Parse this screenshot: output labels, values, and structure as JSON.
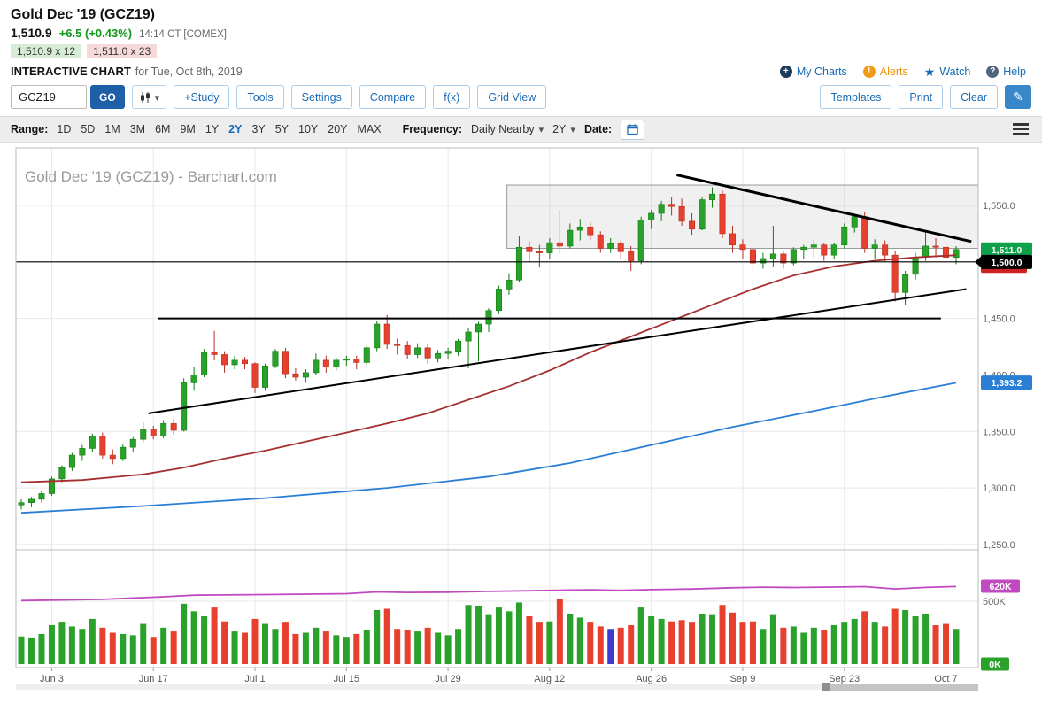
{
  "header": {
    "symbol_title": "Gold Dec '19 (GCZ19)",
    "price": "1,510.9",
    "change": "+6.5 (+0.43%)",
    "quote_time": "14:14 CT [COMEX]",
    "bid": "1,510.9 x 12",
    "ask": "1,511.0 x 23",
    "page_label": "INTERACTIVE CHART",
    "page_date": "for Tue, Oct 8th, 2019",
    "links": {
      "my_charts": "My Charts",
      "alerts": "Alerts",
      "watch": "Watch",
      "help": "Help"
    }
  },
  "toolbar": {
    "symbol_input": "GCZ19",
    "go": "GO",
    "buttons": [
      "+Study",
      "Tools",
      "Settings",
      "Compare",
      "f(x)",
      "Grid View"
    ],
    "right_buttons": [
      "Templates",
      "Print",
      "Clear"
    ]
  },
  "rangebar": {
    "range_label": "Range:",
    "ranges": [
      "1D",
      "5D",
      "1M",
      "3M",
      "6M",
      "9M",
      "1Y",
      "2Y",
      "3Y",
      "5Y",
      "10Y",
      "20Y",
      "MAX"
    ],
    "selected_range": "2Y",
    "frequency_label": "Frequency:",
    "frequency_value": "Daily Nearby",
    "frequency_range": "2Y",
    "date_label": "Date:"
  },
  "chart_data": {
    "type": "candlestick",
    "title": "Gold Dec '19 (GCZ19) - Barchart.com",
    "ylim": [
      1246,
      1602
    ],
    "price_gridlines": [
      1550,
      1500,
      1450,
      1400,
      1350,
      1300,
      1250
    ],
    "y_tick_labels": [
      "1,550.0",
      "1,500.0",
      "1,450.0",
      "1,400.0",
      "1,350.0",
      "1,300.0",
      "1,250.0"
    ],
    "x_ticks": [
      {
        "i": 3,
        "label": "Jun 3"
      },
      {
        "i": 13,
        "label": "Jun 17"
      },
      {
        "i": 23,
        "label": "Jul 1"
      },
      {
        "i": 32,
        "label": "Jul 15"
      },
      {
        "i": 42,
        "label": "Jul 29"
      },
      {
        "i": 52,
        "label": "Aug 12"
      },
      {
        "i": 62,
        "label": "Aug 26"
      },
      {
        "i": 71,
        "label": "Sep 9"
      },
      {
        "i": 81,
        "label": "Sep 23"
      },
      {
        "i": 91,
        "label": "Oct 7"
      }
    ],
    "colors": {
      "up": "#2aa12a",
      "down": "#e8402e",
      "up_stroke": "#0e7d0e",
      "down_stroke": "#b52f1f",
      "ma_fast": "#a63030",
      "ma_slow": "#2a7fd4",
      "oi": "#c04ac0",
      "grid": "#e8e8e8",
      "border": "#bbbbbb",
      "trend": "#000000"
    },
    "candles": [
      [
        "May 29",
        1285,
        1290,
        1281,
        1287,
        220
      ],
      [
        "May 30",
        1287,
        1292,
        1283,
        1290,
        205
      ],
      [
        "May 31",
        1290,
        1297,
        1287,
        1295,
        240
      ],
      [
        "Jun 3",
        1295,
        1310,
        1293,
        1308,
        310
      ],
      [
        "Jun 4",
        1308,
        1320,
        1305,
        1318,
        330
      ],
      [
        "Jun 5",
        1318,
        1331,
        1315,
        1329,
        300
      ],
      [
        "Jun 6",
        1329,
        1338,
        1324,
        1335,
        280
      ],
      [
        "Jun 7",
        1335,
        1348,
        1332,
        1346,
        360
      ],
      [
        "Jun 10",
        1346,
        1349,
        1326,
        1329,
        290
      ],
      [
        "Jun 11",
        1329,
        1334,
        1321,
        1326,
        250
      ],
      [
        "Jun 12",
        1326,
        1339,
        1324,
        1336,
        240
      ],
      [
        "Jun 13",
        1336,
        1345,
        1332,
        1343,
        230
      ],
      [
        "Jun 14",
        1343,
        1358,
        1340,
        1352,
        320
      ],
      [
        "Jun 17",
        1352,
        1355,
        1343,
        1346,
        210
      ],
      [
        "Jun 18",
        1346,
        1360,
        1344,
        1357,
        290
      ],
      [
        "Jun 19",
        1357,
        1361,
        1347,
        1351,
        260
      ],
      [
        "Jun 20",
        1351,
        1397,
        1350,
        1393,
        480
      ],
      [
        "Jun 21",
        1393,
        1407,
        1386,
        1400,
        420
      ],
      [
        "Jun 24",
        1400,
        1423,
        1398,
        1420,
        380
      ],
      [
        "Jun 25",
        1420,
        1439,
        1413,
        1418,
        450
      ],
      [
        "Jun 26",
        1418,
        1421,
        1402,
        1409,
        340
      ],
      [
        "Jun 27",
        1409,
        1417,
        1405,
        1413,
        260
      ],
      [
        "Jun 28",
        1413,
        1416,
        1405,
        1410,
        250
      ],
      [
        "Jul 1",
        1410,
        1411,
        1384,
        1389,
        360
      ],
      [
        "Jul 2",
        1389,
        1410,
        1386,
        1408,
        320
      ],
      [
        "Jul 3",
        1408,
        1423,
        1406,
        1421,
        280
      ],
      [
        "Jul 5",
        1421,
        1424,
        1397,
        1401,
        330
      ],
      [
        "Jul 8",
        1401,
        1406,
        1395,
        1398,
        240
      ],
      [
        "Jul 9",
        1398,
        1405,
        1393,
        1402,
        250
      ],
      [
        "Jul 10",
        1402,
        1419,
        1400,
        1413,
        290
      ],
      [
        "Jul 11",
        1413,
        1417,
        1402,
        1407,
        260
      ],
      [
        "Jul 12",
        1407,
        1415,
        1404,
        1413,
        230
      ],
      [
        "Jul 15",
        1413,
        1417,
        1408,
        1414,
        210
      ],
      [
        "Jul 16",
        1414,
        1417,
        1405,
        1411,
        240
      ],
      [
        "Jul 17",
        1411,
        1426,
        1409,
        1424,
        270
      ],
      [
        "Jul 18",
        1424,
        1448,
        1421,
        1445,
        430
      ],
      [
        "Jul 19",
        1445,
        1453,
        1423,
        1427,
        440
      ],
      [
        "Jul 22",
        1427,
        1432,
        1418,
        1426,
        280
      ],
      [
        "Jul 23",
        1426,
        1430,
        1414,
        1418,
        270
      ],
      [
        "Jul 24",
        1418,
        1428,
        1415,
        1424,
        260
      ],
      [
        "Jul 25",
        1424,
        1427,
        1410,
        1415,
        290
      ],
      [
        "Jul 26",
        1415,
        1422,
        1411,
        1419,
        250
      ],
      [
        "Jul 29",
        1419,
        1424,
        1414,
        1421,
        230
      ],
      [
        "Jul 30",
        1421,
        1432,
        1417,
        1430,
        280
      ],
      [
        "Jul 31",
        1430,
        1442,
        1406,
        1438,
        470
      ],
      [
        "Aug 1",
        1438,
        1447,
        1412,
        1445,
        460
      ],
      [
        "Aug 2",
        1445,
        1459,
        1438,
        1457,
        390
      ],
      [
        "Aug 5",
        1457,
        1479,
        1454,
        1476,
        450
      ],
      [
        "Aug 6",
        1476,
        1490,
        1471,
        1484,
        420
      ],
      [
        "Aug 7",
        1484,
        1523,
        1482,
        1513,
        490
      ],
      [
        "Aug 8",
        1513,
        1518,
        1500,
        1509,
        380
      ],
      [
        "Aug 9",
        1509,
        1515,
        1495,
        1508,
        330
      ],
      [
        "Aug 12",
        1508,
        1521,
        1503,
        1517,
        340
      ],
      [
        "Aug 13",
        1517,
        1546,
        1507,
        1514,
        520
      ],
      [
        "Aug 14",
        1514,
        1534,
        1512,
        1528,
        400
      ],
      [
        "Aug 15",
        1528,
        1538,
        1519,
        1531,
        370
      ],
      [
        "Aug 16",
        1531,
        1535,
        1519,
        1524,
        330
      ],
      [
        "Aug 19",
        1524,
        1527,
        1508,
        1512,
        300
      ],
      [
        "Aug 20",
        1512,
        1521,
        1508,
        1516,
        280
      ],
      [
        "Aug 21",
        1516,
        1519,
        1503,
        1509,
        290
      ],
      [
        "Aug 22",
        1509,
        1514,
        1492,
        1501,
        310
      ],
      [
        "Aug 23",
        1501,
        1540,
        1498,
        1537,
        450
      ],
      [
        "Aug 26",
        1537,
        1546,
        1529,
        1543,
        380
      ],
      [
        "Aug 27",
        1543,
        1554,
        1536,
        1551,
        360
      ],
      [
        "Aug 28",
        1551,
        1557,
        1541,
        1549,
        340
      ],
      [
        "Aug 29",
        1549,
        1556,
        1532,
        1536,
        350
      ],
      [
        "Aug 30",
        1536,
        1543,
        1524,
        1529,
        330
      ],
      [
        "Sep 3",
        1529,
        1557,
        1528,
        1555,
        400
      ],
      [
        "Sep 4",
        1555,
        1566,
        1548,
        1560,
        390
      ],
      [
        "Sep 5",
        1560,
        1563,
        1521,
        1525,
        470
      ],
      [
        "Sep 6",
        1525,
        1532,
        1508,
        1515,
        410
      ],
      [
        "Sep 9",
        1515,
        1520,
        1503,
        1511,
        330
      ],
      [
        "Sep 10",
        1511,
        1513,
        1492,
        1499,
        340
      ],
      [
        "Sep 11",
        1499,
        1508,
        1494,
        1503,
        280
      ],
      [
        "Sep 12",
        1503,
        1532,
        1496,
        1507,
        390
      ],
      [
        "Sep 13",
        1507,
        1510,
        1494,
        1499,
        290
      ],
      [
        "Sep 16",
        1499,
        1513,
        1497,
        1511,
        300
      ],
      [
        "Sep 17",
        1511,
        1515,
        1503,
        1513,
        250
      ],
      [
        "Sep 18",
        1513,
        1520,
        1504,
        1515,
        290
      ],
      [
        "Sep 19",
        1515,
        1517,
        1501,
        1506,
        270
      ],
      [
        "Sep 20",
        1506,
        1517,
        1503,
        1515,
        310
      ],
      [
        "Sep 23",
        1515,
        1534,
        1512,
        1531,
        330
      ],
      [
        "Sep 24",
        1531,
        1543,
        1526,
        1540,
        360
      ],
      [
        "Sep 25",
        1540,
        1544,
        1508,
        1512,
        420
      ],
      [
        "Sep 26",
        1512,
        1520,
        1503,
        1515,
        330
      ],
      [
        "Sep 27",
        1515,
        1519,
        1500,
        1506,
        300
      ],
      [
        "Sep 30",
        1506,
        1510,
        1465,
        1473,
        440
      ],
      [
        "Oct 1",
        1473,
        1492,
        1462,
        1489,
        430
      ],
      [
        "Oct 2",
        1489,
        1508,
        1484,
        1504,
        380
      ],
      [
        "Oct 3",
        1504,
        1526,
        1501,
        1514,
        400
      ],
      [
        "Oct 4",
        1514,
        1521,
        1504,
        1513,
        310
      ],
      [
        "Oct 7",
        1513,
        1518,
        1497,
        1504,
        320
      ],
      [
        "Oct 8",
        1504,
        1514,
        1498,
        1511,
        280
      ]
    ],
    "overlays": {
      "ma_fast": [
        [
          0,
          1305
        ],
        [
          6,
          1307
        ],
        [
          12,
          1312
        ],
        [
          16,
          1318
        ],
        [
          20,
          1326
        ],
        [
          24,
          1333
        ],
        [
          28,
          1341
        ],
        [
          32,
          1349
        ],
        [
          36,
          1357
        ],
        [
          40,
          1366
        ],
        [
          44,
          1378
        ],
        [
          48,
          1390
        ],
        [
          52,
          1404
        ],
        [
          56,
          1420
        ],
        [
          60,
          1434
        ],
        [
          64,
          1448
        ],
        [
          68,
          1462
        ],
        [
          72,
          1476
        ],
        [
          76,
          1488
        ],
        [
          80,
          1496
        ],
        [
          84,
          1501
        ],
        [
          88,
          1504
        ],
        [
          92,
          1506
        ]
      ],
      "ma_slow": [
        [
          0,
          1278
        ],
        [
          12,
          1284
        ],
        [
          24,
          1291
        ],
        [
          36,
          1300
        ],
        [
          46,
          1310
        ],
        [
          54,
          1322
        ],
        [
          62,
          1338
        ],
        [
          70,
          1354
        ],
        [
          78,
          1368
        ],
        [
          85,
          1381
        ],
        [
          92,
          1393
        ]
      ],
      "oi": [
        [
          0,
          505
        ],
        [
          8,
          515
        ],
        [
          14,
          535
        ],
        [
          17,
          548
        ],
        [
          20,
          550
        ],
        [
          24,
          553
        ],
        [
          28,
          556
        ],
        [
          32,
          560
        ],
        [
          35,
          574
        ],
        [
          38,
          570
        ],
        [
          42,
          572
        ],
        [
          46,
          578
        ],
        [
          50,
          583
        ],
        [
          53,
          587
        ],
        [
          56,
          590
        ],
        [
          59,
          586
        ],
        [
          62,
          592
        ],
        [
          66,
          597
        ],
        [
          70,
          607
        ],
        [
          73,
          612
        ],
        [
          76,
          609
        ],
        [
          80,
          613
        ],
        [
          83,
          616
        ],
        [
          86,
          598
        ],
        [
          89,
          610
        ],
        [
          92,
          617
        ]
      ]
    },
    "trendlines": [
      {
        "name": "resistance-trendline",
        "i1": 64.5,
        "p1": 1577,
        "i2": 93.5,
        "p2": 1518,
        "w": 3
      },
      {
        "name": "support-trendline",
        "i1": 12.5,
        "p1": 1366,
        "i2": 93,
        "p2": 1476,
        "w": 2
      },
      {
        "name": "horizontal-level-1450",
        "i1": 13.5,
        "p1": 1450,
        "i2": 90.5,
        "p2": 1450,
        "w": 2
      },
      {
        "name": "horizontal-level-1500",
        "full": true,
        "p1": 1500,
        "p2": 1500,
        "w": 1.2
      }
    ],
    "annotation_box": {
      "i1": 47.8,
      "p_top": 1568,
      "p_bottom": 1512
    },
    "axis_badges": [
      {
        "name": "hidden-red-badge",
        "label": "",
        "price": 1496.5,
        "color": "#cc2222",
        "w": 52
      },
      {
        "name": "last-price-badge",
        "label": "1,511.0",
        "price": 1511,
        "color": "#0fa04a",
        "w": 58
      },
      {
        "name": "level-price-badge",
        "label": "1,500.0",
        "price": 1500,
        "color": "#000000",
        "w": 58,
        "pointer": true
      },
      {
        "name": "ma-slow-badge",
        "label": "1,393.2",
        "price": 1393.2,
        "color": "#2a7fd4",
        "w": 58
      }
    ],
    "volume": {
      "axis_label": "500K",
      "highlight_index": 58,
      "highlight_color": "#3b3bd1"
    },
    "volume_badges": [
      {
        "name": "open-interest-badge",
        "label": "620K",
        "v": 620,
        "color": "#c04ac0",
        "w": 44
      },
      {
        "name": "volume-zero-badge",
        "label": "0K",
        "v": 0,
        "color": "#2aa12a",
        "w": 32
      }
    ]
  }
}
